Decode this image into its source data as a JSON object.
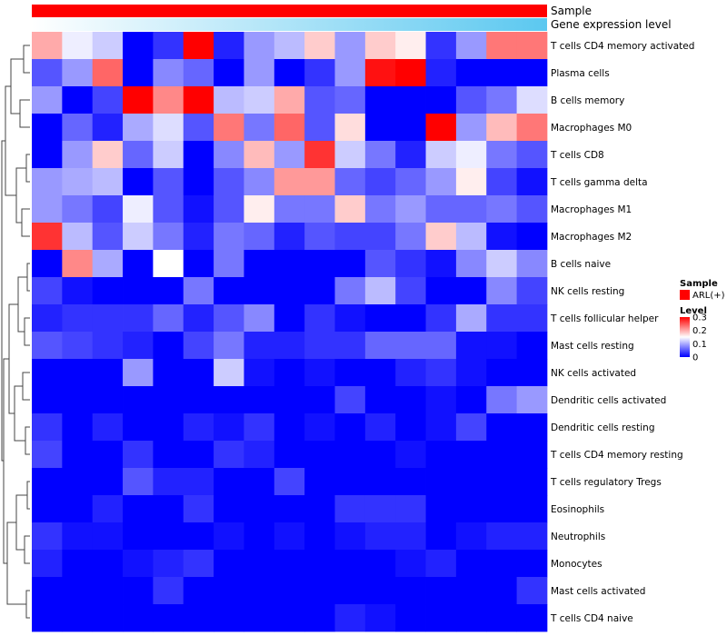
{
  "chart_data": {
    "type": "heatmap",
    "title": "",
    "annotation_tracks": [
      {
        "name": "Sample",
        "color": "#ff0000"
      },
      {
        "name": "Gene expression level",
        "gradient": [
          "#ffffff",
          "#5bc8f0"
        ]
      }
    ],
    "rows": [
      "T cells CD4 memory activated",
      "Plasma cells",
      "B cells memory",
      "Macrophages M0",
      "T cells CD8",
      "T cells gamma delta",
      "Macrophages M1",
      "Macrophages M2",
      "B cells naive",
      "NK cells resting",
      "T cells follicular helper",
      "Mast cells resting",
      "NK cells activated",
      "Dendritic cells activated",
      "Dendritic cells resting",
      "T cells CD4 memory resting",
      "T cells regulatory  Tregs",
      "Eosinophils",
      "Neutrophils",
      "Monocytes",
      "Mast cells activated",
      "T cells CD4 naive"
    ],
    "n_columns": 17,
    "values": [
      [
        0.2,
        0.14,
        0.12,
        0.0,
        0.03,
        0.3,
        0.02,
        0.09,
        0.11,
        0.18,
        0.09,
        0.18,
        0.16,
        0.03,
        0.09,
        0.23,
        0.23
      ],
      [
        0.05,
        0.09,
        0.24,
        0.0,
        0.08,
        0.06,
        0.0,
        0.09,
        0.0,
        0.03,
        0.09,
        0.29,
        0.3,
        0.02,
        0.0,
        0.0,
        0.0
      ],
      [
        0.09,
        0.0,
        0.04,
        0.3,
        0.22,
        0.3,
        0.11,
        0.12,
        0.2,
        0.05,
        0.06,
        0.0,
        0.0,
        0.0,
        0.05,
        0.07,
        0.13
      ],
      [
        0.0,
        0.06,
        0.02,
        0.1,
        0.13,
        0.05,
        0.23,
        0.07,
        0.24,
        0.05,
        0.17,
        0.0,
        0.0,
        0.3,
        0.09,
        0.19,
        0.23
      ],
      [
        0.0,
        0.09,
        0.18,
        0.06,
        0.12,
        0.0,
        0.08,
        0.19,
        0.09,
        0.27,
        0.12,
        0.07,
        0.02,
        0.12,
        0.14,
        0.07,
        0.05
      ],
      [
        0.09,
        0.1,
        0.11,
        0.0,
        0.05,
        0.0,
        0.05,
        0.08,
        0.21,
        0.21,
        0.06,
        0.04,
        0.06,
        0.09,
        0.16,
        0.04,
        0.01
      ],
      [
        0.09,
        0.07,
        0.04,
        0.14,
        0.05,
        0.01,
        0.05,
        0.16,
        0.07,
        0.07,
        0.18,
        0.07,
        0.09,
        0.06,
        0.06,
        0.07,
        0.05
      ],
      [
        0.27,
        0.11,
        0.05,
        0.12,
        0.07,
        0.02,
        0.07,
        0.06,
        0.02,
        0.05,
        0.04,
        0.04,
        0.07,
        0.18,
        0.11,
        0.01,
        0.0
      ],
      [
        0.0,
        0.22,
        0.1,
        0.0,
        0.15,
        0.0,
        0.07,
        0.0,
        0.0,
        0.0,
        0.0,
        0.05,
        0.03,
        0.01,
        0.08,
        0.12,
        0.08
      ],
      [
        0.04,
        0.01,
        0.0,
        0.0,
        0.0,
        0.07,
        0.0,
        0.0,
        0.0,
        0.0,
        0.07,
        0.11,
        0.04,
        0.0,
        0.0,
        0.08,
        0.04
      ],
      [
        0.02,
        0.03,
        0.03,
        0.03,
        0.06,
        0.02,
        0.05,
        0.08,
        0.0,
        0.03,
        0.01,
        0.0,
        0.0,
        0.03,
        0.1,
        0.03,
        0.03
      ],
      [
        0.05,
        0.04,
        0.03,
        0.02,
        0.0,
        0.04,
        0.07,
        0.02,
        0.02,
        0.03,
        0.03,
        0.06,
        0.06,
        0.06,
        0.01,
        0.01,
        0.0
      ],
      [
        0.0,
        0.0,
        0.0,
        0.09,
        0.0,
        0.0,
        0.12,
        0.01,
        0.0,
        0.01,
        0.0,
        0.0,
        0.02,
        0.03,
        0.01,
        0.0,
        0.0
      ],
      [
        0.0,
        0.0,
        0.0,
        0.0,
        0.0,
        0.0,
        0.0,
        0.0,
        0.0,
        0.0,
        0.04,
        0.0,
        0.0,
        0.01,
        0.0,
        0.07,
        0.09
      ],
      [
        0.03,
        0.0,
        0.02,
        0.0,
        0.0,
        0.02,
        0.01,
        0.03,
        0.0,
        0.01,
        0.0,
        0.02,
        0.0,
        0.01,
        0.04,
        0.0,
        0.0
      ],
      [
        0.04,
        0.0,
        0.0,
        0.03,
        0.0,
        0.0,
        0.03,
        0.02,
        0.0,
        0.0,
        0.0,
        0.0,
        0.01,
        0.0,
        0.0,
        0.0,
        0.0
      ],
      [
        0.0,
        0.0,
        0.0,
        0.05,
        0.02,
        0.02,
        0.0,
        0.0,
        0.04,
        0.0,
        0.0,
        0.0,
        0.0,
        0.0,
        0.0,
        0.0,
        0.0
      ],
      [
        0.0,
        0.0,
        0.02,
        0.0,
        0.0,
        0.03,
        0.0,
        0.0,
        0.0,
        0.0,
        0.03,
        0.03,
        0.03,
        0.0,
        0.0,
        0.0,
        0.0
      ],
      [
        0.03,
        0.01,
        0.01,
        0.0,
        0.0,
        0.0,
        0.01,
        0.0,
        0.01,
        0.0,
        0.01,
        0.02,
        0.02,
        0.0,
        0.01,
        0.02,
        0.02
      ],
      [
        0.02,
        0.0,
        0.0,
        0.01,
        0.02,
        0.03,
        0.0,
        0.0,
        0.0,
        0.0,
        0.0,
        0.0,
        0.01,
        0.02,
        0.0,
        0.0,
        0.0
      ],
      [
        0.0,
        0.0,
        0.0,
        0.0,
        0.03,
        0.0,
        0.0,
        0.0,
        0.0,
        0.0,
        0.0,
        0.0,
        0.0,
        0.0,
        0.0,
        0.0,
        0.03
      ],
      [
        0.0,
        0.0,
        0.0,
        0.0,
        0.0,
        0.0,
        0.0,
        0.0,
        0.0,
        0.0,
        0.02,
        0.01,
        0.0,
        0.0,
        0.0,
        0.0,
        0.0
      ]
    ],
    "color_scale": {
      "min": 0,
      "mid": 0.15,
      "max": 0.3,
      "colors": [
        "#0000ff",
        "#ffffff",
        "#ff0000"
      ]
    },
    "legend": {
      "placement": "right",
      "sample_title": "Sample",
      "sample_item": "ARL(+)",
      "sample_color": "#ff0000",
      "level_title": "Level",
      "level_ticks": [
        "0.3",
        "0.2",
        "0.1",
        "0"
      ],
      "level_values": [
        0.3,
        0.2,
        0.1,
        0
      ]
    },
    "row_dendrogram": true
  }
}
